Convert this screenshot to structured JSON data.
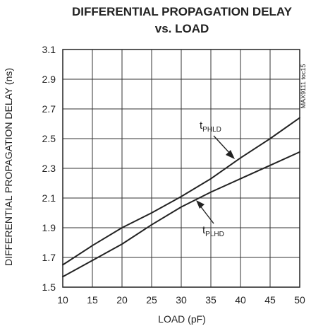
{
  "chart_data": {
    "type": "line",
    "title_lines": [
      "DIFFERENTIAL PROPAGATION DELAY",
      "vs. LOAD"
    ],
    "xlabel": "LOAD (pF)",
    "ylabel": "DIFFERENTIAL PROPAGATION DELAY (ns)",
    "xlim": [
      10,
      50
    ],
    "ylim": [
      1.5,
      3.1
    ],
    "x_ticks": [
      "10",
      "15",
      "20",
      "25",
      "30",
      "35",
      "40",
      "45",
      "50"
    ],
    "y_ticks": [
      "1.5",
      "1.7",
      "1.9",
      "2.1",
      "2.3",
      "2.5",
      "2.7",
      "2.9",
      "3.1"
    ],
    "grid": true,
    "series": [
      {
        "name_main": "t",
        "name_sub": "PHLD",
        "x": [
          10,
          15,
          20,
          25,
          30,
          35,
          40,
          45,
          50
        ],
        "y": [
          1.65,
          1.78,
          1.9,
          2.0,
          2.11,
          2.23,
          2.37,
          2.5,
          2.64
        ]
      },
      {
        "name_main": "t",
        "name_sub": "PLHD",
        "x": [
          10,
          15,
          20,
          25,
          30,
          35,
          40,
          45,
          50
        ],
        "y": [
          1.57,
          1.68,
          1.79,
          1.92,
          2.04,
          2.14,
          2.23,
          2.32,
          2.41
        ]
      }
    ],
    "side_code": "MAX9111 toc15",
    "line_color": "#222222",
    "grid_color": "#333333"
  }
}
